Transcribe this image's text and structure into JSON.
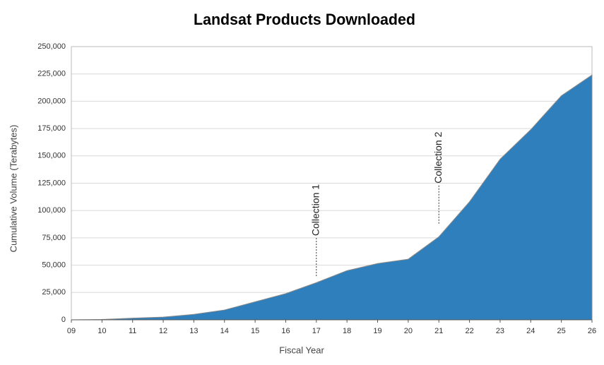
{
  "chart_data": {
    "type": "area",
    "title": "Landsat Products Downloaded",
    "x_label": "Fiscal Year",
    "y_label": "Cumulative Volume (Terabytes)",
    "categories": [
      "09",
      "10",
      "11",
      "12",
      "13",
      "14",
      "15",
      "16",
      "17",
      "18",
      "19",
      "20",
      "21",
      "22",
      "23",
      "24",
      "25",
      "26"
    ],
    "values": [
      0,
      300,
      1500,
      2500,
      5000,
      9000,
      16500,
      24000,
      34000,
      45000,
      51500,
      55500,
      76000,
      108000,
      147000,
      174000,
      205000,
      224000
    ],
    "color": "#2e7fbb",
    "ylim": [
      0,
      250000
    ],
    "yticks": [
      0,
      {
        "value": 25000,
        "label": "25,000"
      },
      {
        "value": 50000,
        "label": "50,000"
      },
      {
        "value": 75000,
        "label": "75,000"
      },
      {
        "value": 100000,
        "label": "100,000"
      },
      {
        "value": 125000,
        "label": "125,000"
      },
      {
        "value": 150000,
        "label": "150,000"
      },
      {
        "value": 175000,
        "label": "175,000"
      },
      {
        "value": 200000,
        "label": "200,000"
      },
      {
        "value": 225000,
        "label": "225,000"
      },
      {
        "value": 250000,
        "label": "250,000"
      }
    ],
    "grid": true,
    "annotations": [
      {
        "text": "Collection 1",
        "x": "17",
        "y": 40000
      },
      {
        "text": "Collection 2",
        "x": "21",
        "y": 88000
      }
    ]
  }
}
